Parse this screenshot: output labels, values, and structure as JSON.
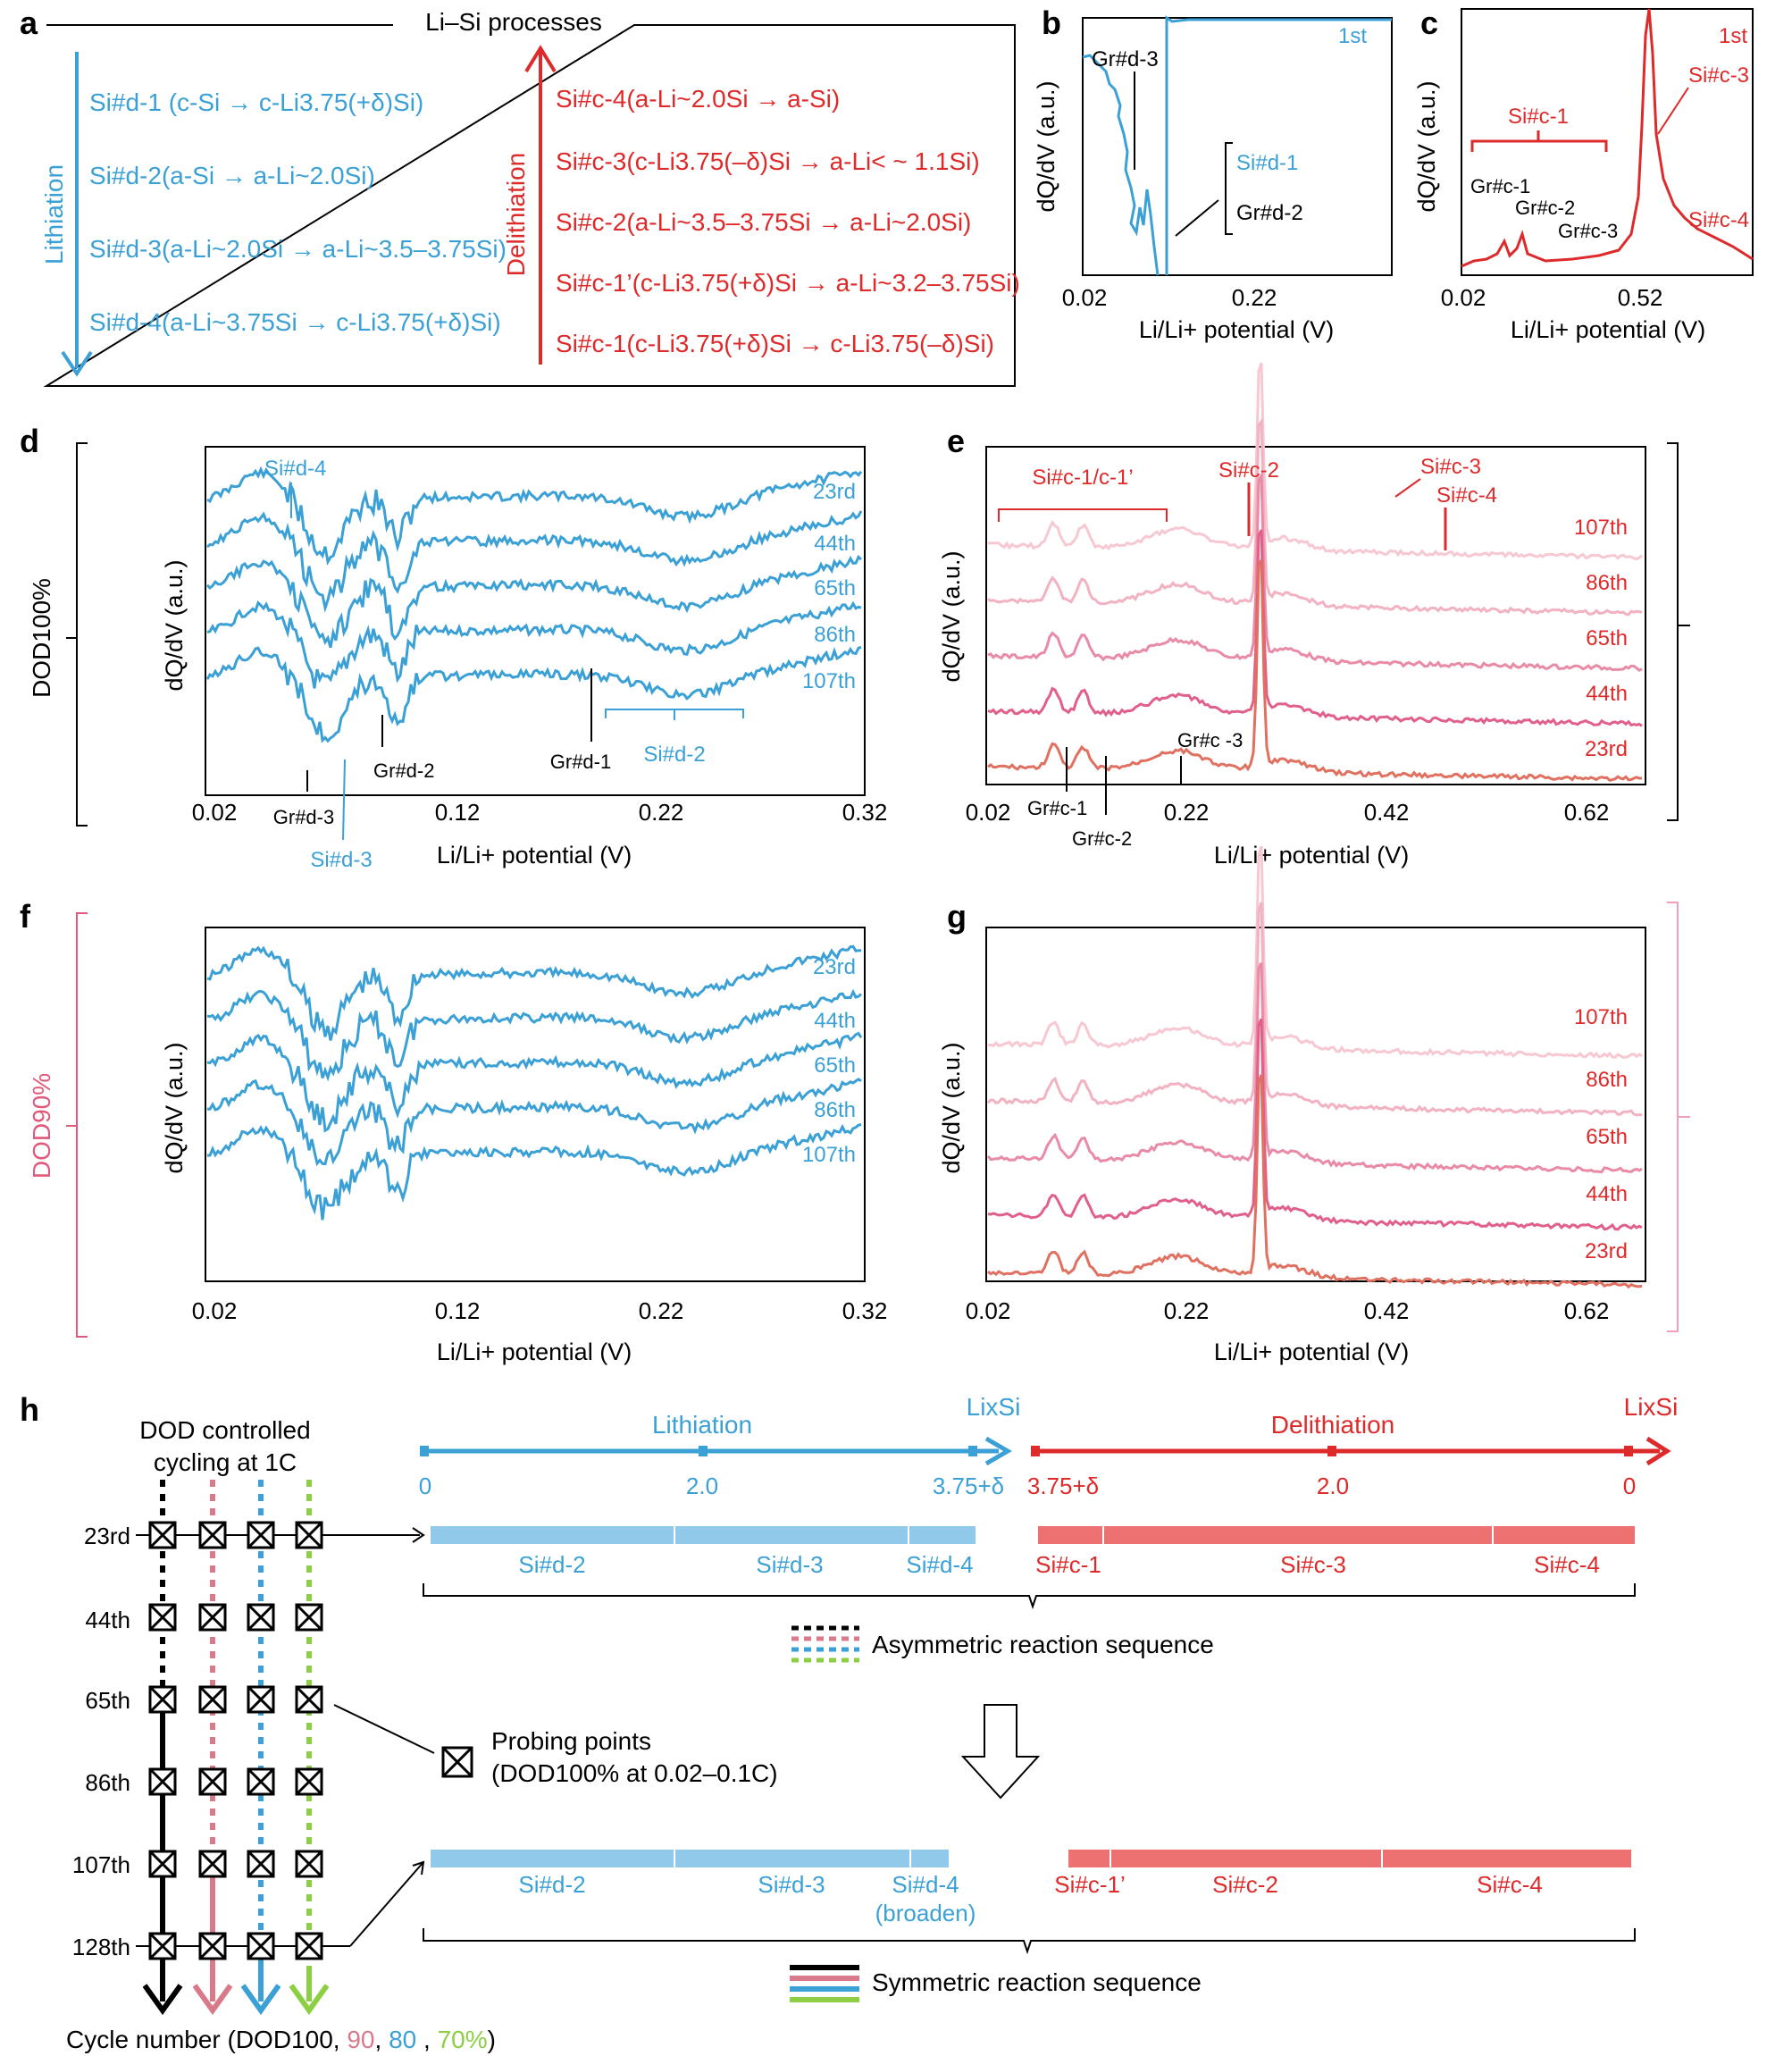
{
  "colors": {
    "lith": "#3aa0d5",
    "delith": "#dd2a2a",
    "seg_blue": "#90c9ea",
    "seg_red": "#ee7171",
    "dod90": "#d87a8a",
    "dod80": "#3aa0d5",
    "dod70": "#8ccf45",
    "dod100": "#000000",
    "pink_label": "#e0587a"
  },
  "panel_a": {
    "label": "a",
    "title": "Li–Si processes",
    "lith_label": "Lithiation",
    "delith_label": "Delithiation",
    "lith_items": [
      "Si#d-1 (c-Si → c-Li3.75(+δ)Si)",
      "Si#d-2(a-Si → a-Li~2.0Si)",
      "Si#d-3(a-Li~2.0Si → a-Li~3.5–3.75Si)",
      "Si#d-4(a-Li~3.75Si → c-Li3.75(+δ)Si)"
    ],
    "delith_items": [
      "Si#c-4(a-Li~2.0Si → a-Si)",
      "Si#c-3(c-Li3.75(–δ)Si → a-Li< ~ 1.1Si)",
      "Si#c-2(a-Li~3.5–3.75Si → a-Li~2.0Si)",
      "Si#c-1’(c-Li3.75(+δ)Si → a-Li~3.2–3.75Si)",
      "Si#c-1(c-Li3.75(+δ)Si → c-Li3.75(–δ)Si)"
    ]
  },
  "axes": {
    "ylabel": "dQ/dV (a.u.)",
    "xlabel": "Li/Li+ potential (V)"
  },
  "panel_b": {
    "label": "b",
    "cycle": "1st",
    "ticks": [
      "0.02",
      "0.22"
    ],
    "annotations": [
      "Gr#d-3",
      "Si#d-1",
      "Gr#d-2"
    ]
  },
  "panel_c": {
    "label": "c",
    "cycle": "1st",
    "ticks": [
      "0.02",
      "0.52"
    ],
    "annotations": [
      "Si#c-1",
      "Si#c-3",
      "Gr#c-1",
      "Gr#c-2",
      "Gr#c-3",
      "Si#c-4"
    ]
  },
  "panel_d": {
    "label": "d",
    "ticks": [
      "0.02",
      "0.12",
      "0.22",
      "0.32"
    ],
    "cycles": [
      "23rd",
      "44th",
      "65th",
      "86th",
      "107th"
    ],
    "annotations": [
      "Si#d-4",
      "Gr#d-2",
      "Gr#d-1",
      "Si#d-2",
      "Gr#d-3",
      "Si#d-3"
    ]
  },
  "panel_e": {
    "label": "e",
    "ticks": [
      "0.02",
      "0.22",
      "0.42",
      "0.62"
    ],
    "cycles": [
      "107th",
      "86th",
      "65th",
      "44th",
      "23rd"
    ],
    "annotations": [
      "Si#c-1/c-1’",
      "Si#c-2",
      "Si#c-3",
      "Si#c-4",
      "Gr#c -3",
      "Gr#c-1",
      "Gr#c-2"
    ]
  },
  "panel_f": {
    "label": "f",
    "ticks": [
      "0.02",
      "0.12",
      "0.22",
      "0.32"
    ],
    "cycles": [
      "23rd",
      "44th",
      "65th",
      "86th",
      "107th"
    ]
  },
  "panel_g": {
    "label": "g",
    "ticks": [
      "0.02",
      "0.22",
      "0.42",
      "0.62"
    ],
    "cycles": [
      "107th",
      "86th",
      "65th",
      "44th",
      "23rd"
    ]
  },
  "dod100": "DOD100%",
  "dod90": "DOD90%",
  "panel_h": {
    "label": "h",
    "header": [
      "DOD controlled",
      "cycling at 1C"
    ],
    "cycle_rows": [
      "23rd",
      "44th",
      "65th",
      "86th",
      "107th",
      "128th"
    ],
    "lithiation": "Lithiation",
    "delithiation": "Delithiation",
    "lixsi": "LixSi",
    "lith_ticks": [
      "0",
      "2.0",
      "3.75+δ"
    ],
    "delith_ticks": [
      "3.75+δ",
      "2.0",
      "0"
    ],
    "top_blue": [
      "Si#d-2",
      "Si#d-3",
      "Si#d-4"
    ],
    "top_red": [
      "Si#c-1",
      "Si#c-3",
      "Si#c-4"
    ],
    "bottom_blue": [
      "Si#d-2",
      "Si#d-3",
      "Si#d-4",
      "(broaden)"
    ],
    "bottom_red": [
      "Si#c-1’",
      "Si#c-2",
      "Si#c-4"
    ],
    "asym": "Asymmetric reaction sequence",
    "sym": "Symmetric reaction sequence",
    "probing": [
      "Probing points",
      "(DOD100% at 0.02–0.1C)"
    ],
    "footer": [
      "Cycle number (DOD100, ",
      "90",
      ", ",
      "80",
      " , ",
      "70%",
      ")"
    ]
  }
}
